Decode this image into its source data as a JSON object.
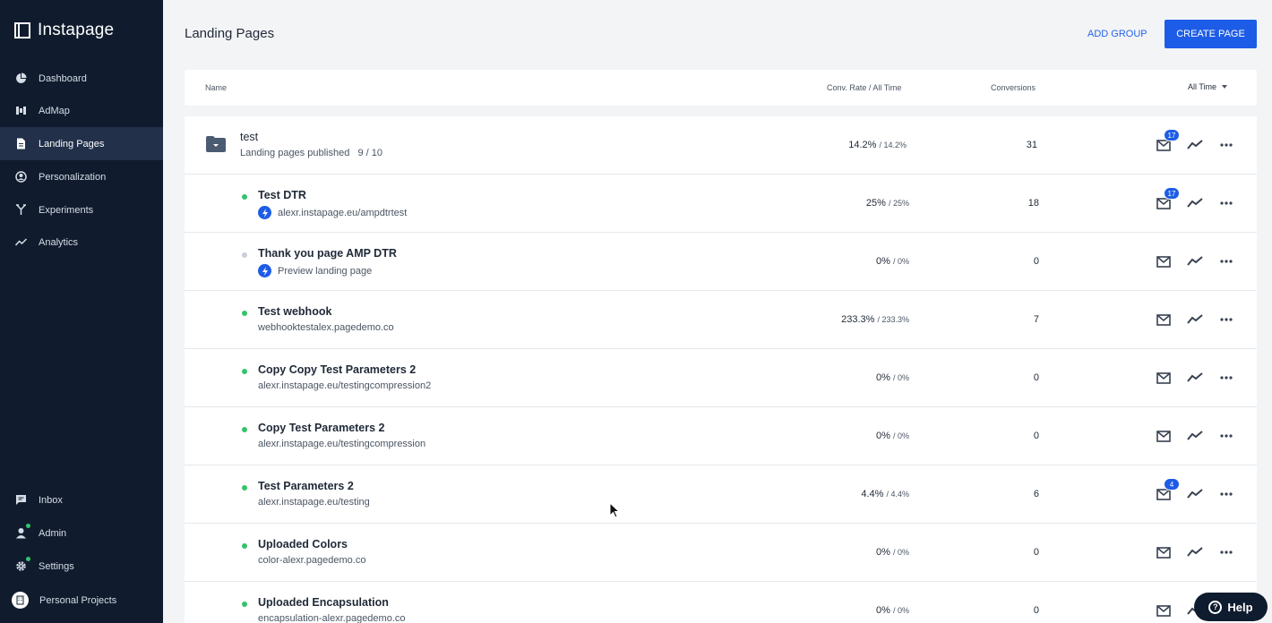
{
  "app": {
    "logo_text": "Instapage"
  },
  "sidebar": {
    "items": [
      {
        "label": "Dashboard",
        "icon": "pie-chart-icon"
      },
      {
        "label": "AdMap",
        "icon": "admap-icon"
      },
      {
        "label": "Landing Pages",
        "icon": "document-icon",
        "active": true
      },
      {
        "label": "Personalization",
        "icon": "personalization-icon"
      },
      {
        "label": "Experiments",
        "icon": "experiments-icon"
      },
      {
        "label": "Analytics",
        "icon": "analytics-icon"
      }
    ],
    "bottom_items": [
      {
        "label": "Inbox",
        "icon": "inbox-icon"
      },
      {
        "label": "Admin",
        "icon": "user-icon"
      },
      {
        "label": "Settings",
        "icon": "gear-icon"
      }
    ],
    "workspace": {
      "label": "Personal Projects",
      "icon": "building-icon"
    }
  },
  "header": {
    "title": "Landing Pages",
    "add_group_label": "ADD GROUP",
    "create_page_label": "CREATE PAGE"
  },
  "table": {
    "columns": {
      "name": "Name",
      "conv_rate": "Conv. Rate / All Time",
      "conversions": "Conversions",
      "period": "All Time"
    },
    "group": {
      "name": "test",
      "published_label": "Landing pages published",
      "published_count": "9 / 10",
      "rate": "14.2%",
      "rate_all": "/ 14.2%",
      "conversions": "31",
      "inbox_badge": "17"
    },
    "rows": [
      {
        "name": "Test DTR",
        "sub": "alexr.instapage.eu/ampdtrtest",
        "amp": true,
        "status": "published",
        "rate": "25%",
        "rate_all": "/ 25%",
        "conversions": "18",
        "badge": "17"
      },
      {
        "name": "Thank you page AMP DTR",
        "sub": "Preview landing page",
        "amp": true,
        "status": "draft",
        "rate": "0%",
        "rate_all": "/ 0%",
        "conversions": "0",
        "badge": ""
      },
      {
        "name": "Test webhook",
        "sub": "webhooktestalex.pagedemo.co",
        "amp": false,
        "status": "published",
        "rate": "233.3%",
        "rate_all": "/ 233.3%",
        "conversions": "7",
        "badge": ""
      },
      {
        "name": "Copy Copy Test Parameters 2",
        "sub": "alexr.instapage.eu/testingcompression2",
        "amp": false,
        "status": "published",
        "rate": "0%",
        "rate_all": "/ 0%",
        "conversions": "0",
        "badge": ""
      },
      {
        "name": "Copy Test Parameters 2",
        "sub": "alexr.instapage.eu/testingcompression",
        "amp": false,
        "status": "published",
        "rate": "0%",
        "rate_all": "/ 0%",
        "conversions": "0",
        "badge": ""
      },
      {
        "name": "Test Parameters 2",
        "sub": "alexr.instapage.eu/testing",
        "amp": false,
        "status": "published",
        "rate": "4.4%",
        "rate_all": "/ 4.4%",
        "conversions": "6",
        "badge": "4"
      },
      {
        "name": "Uploaded Colors",
        "sub": "color-alexr.pagedemo.co",
        "amp": false,
        "status": "published",
        "rate": "0%",
        "rate_all": "/ 0%",
        "conversions": "0",
        "badge": ""
      },
      {
        "name": "Uploaded Encapsulation",
        "sub": "encapsulation-alexr.pagedemo.co",
        "amp": false,
        "status": "published",
        "rate": "0%",
        "rate_all": "/ 0%",
        "conversions": "0",
        "badge": ""
      }
    ]
  },
  "help": {
    "label": "Help"
  },
  "colors": {
    "sidebar_bg": "#101c2e",
    "accent": "#1d5ce6",
    "published": "#35c26b",
    "draft": "#c9cfd8"
  }
}
